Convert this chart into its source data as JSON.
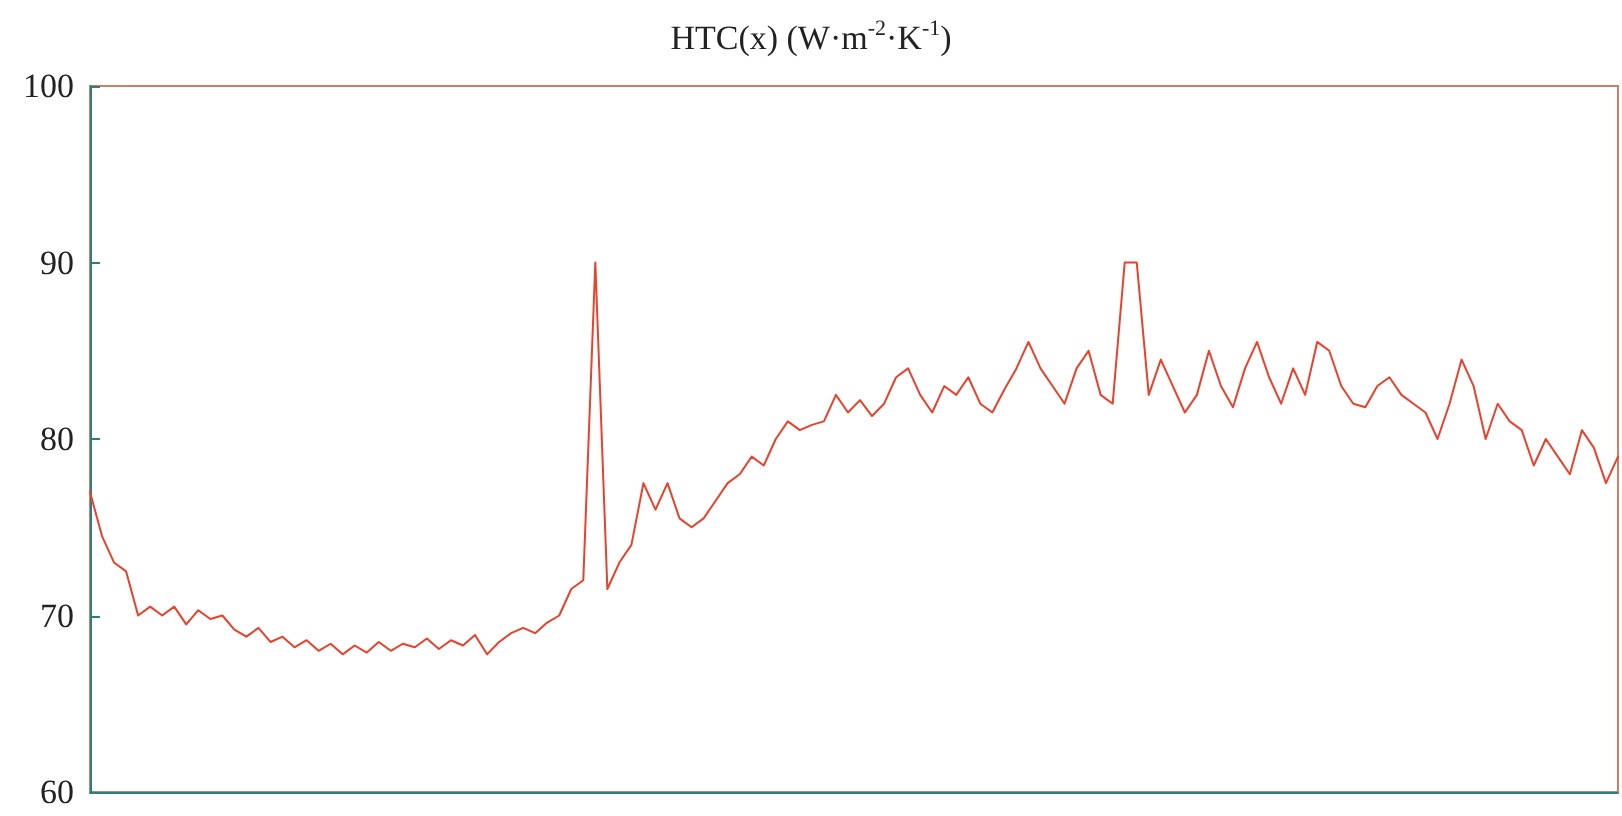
{
  "chart_data": {
    "type": "line",
    "title": "HTC(x) (W·m$^{-2}$·K$^{-1}$)",
    "categories": [
      null,
      null,
      null,
      null,
      null,
      null,
      null,
      null,
      null,
      null,
      null,
      null,
      null,
      null,
      null,
      null,
      null,
      null,
      null,
      null,
      null,
      null,
      null,
      null,
      null,
      null,
      null,
      null,
      null,
      null,
      null,
      null,
      null,
      null,
      null,
      null,
      null,
      null,
      null,
      null,
      null,
      null,
      null,
      null,
      null,
      null,
      null,
      null,
      null,
      null,
      null,
      null,
      null,
      null,
      null,
      null,
      null,
      null,
      null,
      null,
      null,
      null,
      null,
      null,
      null,
      null,
      null,
      null,
      null,
      null,
      null,
      null,
      null,
      null,
      null,
      null,
      null,
      null,
      null,
      null,
      null,
      null,
      null,
      null,
      null,
      null,
      null,
      null,
      null,
      null,
      null,
      null,
      null,
      null,
      null,
      null,
      null,
      null,
      null,
      null,
      null,
      null,
      null,
      null,
      null,
      null,
      null,
      null,
      null,
      null,
      null,
      null,
      null,
      null,
      null,
      null,
      null,
      null,
      null,
      null,
      null,
      null,
      null,
      null,
      null,
      null,
      null,
      null
    ],
    "series": [
      {
        "color": "#e8412c",
        "values": [
          77,
          74.5,
          73,
          72.5,
          70,
          70.5,
          70,
          70.5,
          69.5,
          70.3,
          69.8,
          70,
          69.2,
          68.8,
          69.3,
          68.5,
          68.8,
          68.2,
          68.6,
          68,
          68.4,
          67.8,
          68.3,
          67.9,
          68.5,
          68,
          68.4,
          68.2,
          68.7,
          68.1,
          68.6,
          68.3,
          68.9,
          67.8,
          68.5,
          69,
          69.3,
          69,
          69.6,
          70,
          71.5,
          72,
          90,
          71.5,
          73,
          74,
          77.5,
          76,
          77.5,
          75.5,
          75,
          75.5,
          76.5,
          77.5,
          78,
          79,
          78.5,
          80,
          81,
          80.5,
          80.8,
          81,
          82.5,
          81.5,
          82.2,
          81.3,
          82,
          83.5,
          84,
          82.5,
          81.5,
          83,
          82.5,
          83.5,
          82,
          81.5,
          82.8,
          84,
          85.5,
          84,
          83,
          82,
          84,
          85,
          82.5,
          82,
          90,
          90,
          82.5,
          84.5,
          83,
          81.5,
          82.5,
          85,
          83,
          81.8,
          84,
          85.5,
          83.5,
          82,
          84,
          82.5,
          85.5,
          85,
          83,
          82,
          81.8,
          83,
          83.5,
          82.5,
          82,
          81.5,
          80,
          82,
          84.5,
          83,
          80,
          82,
          81,
          80.5,
          78.5,
          80,
          79,
          78,
          80.5,
          79.5,
          77.5,
          79
        ]
      }
    ],
    "ylim": [
      60,
      100
    ],
    "yticks": [
      60,
      70,
      80,
      90,
      100
    ],
    "tick_labels": "y",
    "line_style": "solid"
  }
}
